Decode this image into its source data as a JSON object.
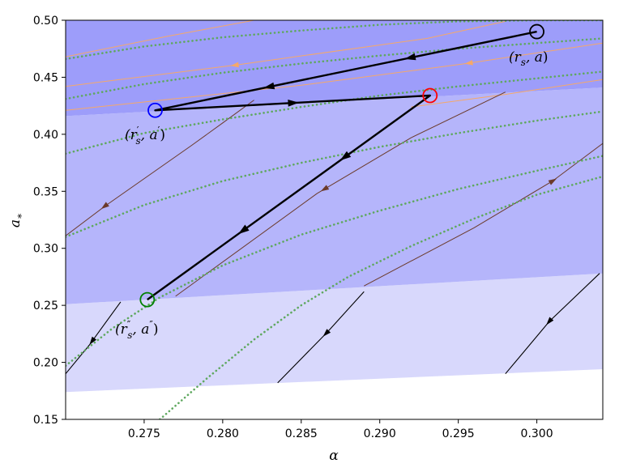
{
  "chart_data": {
    "type": "line",
    "title": "",
    "xlabel": "α",
    "ylabel": "a*",
    "xlim": [
      0.27,
      0.3042
    ],
    "ylim": [
      0.15,
      0.5
    ],
    "xticks": [
      0.275,
      0.28,
      0.285,
      0.29,
      0.295,
      0.3
    ],
    "xtick_labels": [
      "0.275",
      "0.280",
      "0.285",
      "0.290",
      "0.295",
      "0.300"
    ],
    "yticks": [
      0.15,
      0.2,
      0.25,
      0.3,
      0.35,
      0.4,
      0.45,
      0.5
    ],
    "ytick_labels": [
      "0.15",
      "0.20",
      "0.25",
      "0.30",
      "0.35",
      "0.40",
      "0.45",
      "0.50"
    ],
    "grid": false,
    "colors": {
      "region_light": "#d8d8fc",
      "region_mid": "#b5b5fb",
      "region_dark": "#9d9dfa",
      "dotted_curves": "#5fa85f",
      "flow_orange": "#f5a86a",
      "flow_brown": "#6b3a2a",
      "flow_black": "#000000",
      "path": "#000000",
      "marker_start": "#000000",
      "marker_mid": "#ff0000",
      "marker_prime": "#0000ff",
      "marker_end": "#008000"
    },
    "regions": [
      {
        "name": "light",
        "lower": [
          [
            0.27,
            0.174
          ],
          [
            0.3042,
            0.194
          ]
        ],
        "upper": [
          [
            0.27,
            0.251
          ],
          [
            0.3042,
            0.278
          ]
        ]
      },
      {
        "name": "mid",
        "lower": [
          [
            0.27,
            0.251
          ],
          [
            0.3042,
            0.278
          ]
        ],
        "upper": [
          [
            0.27,
            0.416
          ],
          [
            0.3042,
            0.441
          ]
        ]
      },
      {
        "name": "dark",
        "lower": [
          [
            0.27,
            0.416
          ],
          [
            0.3042,
            0.441
          ]
        ],
        "upper": [
          [
            0.27,
            0.5
          ],
          [
            0.3042,
            0.5
          ]
        ]
      }
    ],
    "dotted_curves": [
      [
        [
          0.27,
          0.466
        ],
        [
          0.275,
          0.477
        ],
        [
          0.28,
          0.485
        ],
        [
          0.285,
          0.491
        ],
        [
          0.29,
          0.496
        ],
        [
          0.295,
          0.499
        ],
        [
          0.3,
          0.5
        ],
        [
          0.3042,
          0.5
        ]
      ],
      [
        [
          0.27,
          0.431
        ],
        [
          0.275,
          0.444
        ],
        [
          0.28,
          0.454
        ],
        [
          0.285,
          0.462
        ],
        [
          0.29,
          0.469
        ],
        [
          0.295,
          0.475
        ],
        [
          0.3,
          0.48
        ],
        [
          0.3042,
          0.484
        ]
      ],
      [
        [
          0.27,
          0.383
        ],
        [
          0.275,
          0.401
        ],
        [
          0.28,
          0.413
        ],
        [
          0.285,
          0.424
        ],
        [
          0.29,
          0.434
        ],
        [
          0.295,
          0.442
        ],
        [
          0.3,
          0.449
        ],
        [
          0.3042,
          0.455
        ]
      ],
      [
        [
          0.27,
          0.31
        ],
        [
          0.275,
          0.338
        ],
        [
          0.28,
          0.359
        ],
        [
          0.285,
          0.375
        ],
        [
          0.29,
          0.389
        ],
        [
          0.295,
          0.401
        ],
        [
          0.3,
          0.412
        ],
        [
          0.3042,
          0.42
        ]
      ],
      [
        [
          0.27,
          0.197
        ],
        [
          0.273,
          0.23
        ],
        [
          0.276,
          0.257
        ],
        [
          0.28,
          0.285
        ],
        [
          0.285,
          0.312
        ],
        [
          0.29,
          0.333
        ],
        [
          0.295,
          0.352
        ],
        [
          0.3,
          0.368
        ],
        [
          0.3042,
          0.381
        ]
      ],
      [
        [
          0.276,
          0.15
        ],
        [
          0.279,
          0.186
        ],
        [
          0.282,
          0.22
        ],
        [
          0.285,
          0.25
        ],
        [
          0.288,
          0.275
        ],
        [
          0.292,
          0.302
        ],
        [
          0.296,
          0.326
        ],
        [
          0.3,
          0.347
        ],
        [
          0.3042,
          0.363
        ]
      ]
    ],
    "flow_lines": [
      {
        "color": "flow_orange",
        "points": [
          [
            0.27,
            0.468
          ],
          [
            0.2765,
            0.486
          ],
          [
            0.282,
            0.5
          ]
        ],
        "arrows": []
      },
      {
        "color": "flow_orange",
        "points": [
          [
            0.27,
            0.442
          ],
          [
            0.281,
            0.461
          ],
          [
            0.293,
            0.484
          ],
          [
            0.298,
            0.499
          ]
        ],
        "arrows": [
          {
            "at": 0.2808,
            "dir": -1
          }
        ]
      },
      {
        "color": "flow_orange",
        "points": [
          [
            0.27,
            0.421
          ],
          [
            0.285,
            0.443
          ],
          [
            0.2955,
            0.462
          ],
          [
            0.3042,
            0.48
          ]
        ],
        "arrows": [
          {
            "at": 0.2957,
            "dir": -1
          }
        ]
      },
      {
        "color": "flow_orange",
        "points": [
          [
            0.292,
            0.424
          ],
          [
            0.298,
            0.435
          ],
          [
            0.3042,
            0.448
          ]
        ],
        "arrows": []
      },
      {
        "color": "flow_brown",
        "points": [
          [
            0.27,
            0.311
          ],
          [
            0.2725,
            0.337
          ],
          [
            0.278,
            0.39
          ],
          [
            0.28,
            0.41
          ],
          [
            0.282,
            0.43
          ]
        ],
        "arrows": [
          {
            "at": 0.2725,
            "dir": -1
          }
        ]
      },
      {
        "color": "flow_brown",
        "points": [
          [
            0.277,
            0.258
          ],
          [
            0.286,
            0.348
          ],
          [
            0.292,
            0.397
          ],
          [
            0.298,
            0.437
          ]
        ],
        "arrows": [
          {
            "at": 0.2865,
            "dir": -1
          }
        ]
      },
      {
        "color": "flow_brown",
        "points": [
          [
            0.289,
            0.267
          ],
          [
            0.296,
            0.318
          ],
          [
            0.301,
            0.359
          ],
          [
            0.3042,
            0.392
          ]
        ],
        "arrows": [
          {
            "at": 0.301,
            "dir": 1
          }
        ]
      },
      {
        "color": "flow_black",
        "points": [
          [
            0.27,
            0.19
          ],
          [
            0.2715,
            0.215
          ],
          [
            0.2735,
            0.253
          ]
        ],
        "arrows": [
          {
            "at": 0.2717,
            "dir": -1
          }
        ]
      },
      {
        "color": "flow_black",
        "points": [
          [
            0.2835,
            0.182
          ],
          [
            0.2867,
            0.227
          ],
          [
            0.289,
            0.262
          ]
        ],
        "arrows": [
          {
            "at": 0.2866,
            "dir": -1
          }
        ]
      },
      {
        "color": "flow_black",
        "points": [
          [
            0.298,
            0.19
          ],
          [
            0.3008,
            0.236
          ],
          [
            0.304,
            0.278
          ]
        ],
        "arrows": [
          {
            "at": 0.3008,
            "dir": -1
          }
        ]
      }
    ],
    "path": [
      [
        0.3,
        0.49
      ],
      [
        0.2757,
        0.421
      ],
      [
        0.2932,
        0.434
      ],
      [
        0.2752,
        0.255
      ]
    ],
    "path_arrows": [
      {
        "seg": 0,
        "t": 0.33
      },
      {
        "seg": 0,
        "t": 0.7
      },
      {
        "seg": 1,
        "t": 0.5
      },
      {
        "seg": 2,
        "t": 0.3
      },
      {
        "seg": 2,
        "t": 0.66
      }
    ],
    "points": [
      {
        "label": "(r_s, a)",
        "x": 0.3,
        "y": 0.49,
        "color": "marker_start"
      },
      {
        "label": "(r′_s, a′)",
        "x": 0.2757,
        "y": 0.421,
        "color": "marker_prime"
      },
      {
        "label": "",
        "x": 0.2932,
        "y": 0.434,
        "color": "marker_mid"
      },
      {
        "label": "(r″_s, a″)",
        "x": 0.2752,
        "y": 0.255,
        "color": "marker_end"
      }
    ]
  }
}
